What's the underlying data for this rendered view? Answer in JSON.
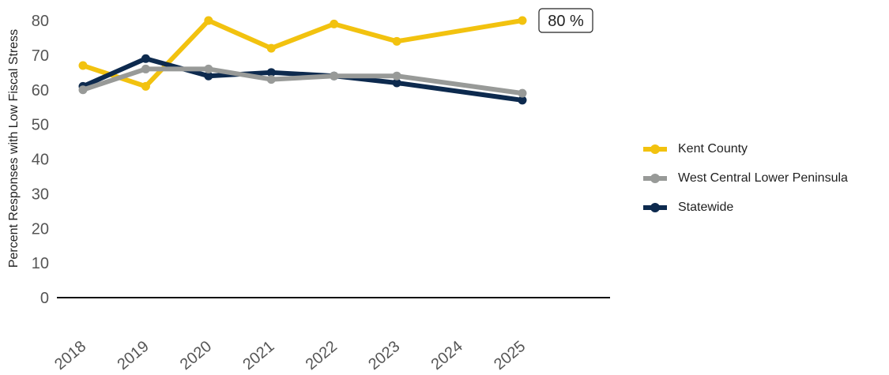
{
  "chart_data": {
    "type": "line",
    "title": "",
    "xlabel": "",
    "ylabel": "Percent Responses with Low Fiscal Stress",
    "categories": [
      "2018",
      "2019",
      "2020",
      "2021",
      "2022",
      "2023",
      "2024",
      "2025"
    ],
    "yticks": [
      "0",
      "10",
      "20",
      "30",
      "40",
      "50",
      "60",
      "70",
      "80"
    ],
    "ylim": [
      0,
      80
    ],
    "grid": false,
    "legend_position": "right",
    "series": [
      {
        "name": "Kent County",
        "color": "#f2c20f",
        "values": [
          67,
          61,
          80,
          72,
          79,
          74,
          null,
          80
        ]
      },
      {
        "name": "West Central Lower Peninsula",
        "color": "#989a98",
        "values": [
          60,
          66,
          66,
          63,
          64,
          64,
          null,
          59
        ]
      },
      {
        "name": "Statewide",
        "color": "#0d2a4e",
        "values": [
          61,
          69,
          64,
          65,
          64,
          62,
          null,
          57
        ]
      }
    ],
    "draw_order": [
      0,
      2,
      1
    ],
    "annotation": {
      "text": "80 %",
      "series_index": 0,
      "category": "2025"
    }
  }
}
